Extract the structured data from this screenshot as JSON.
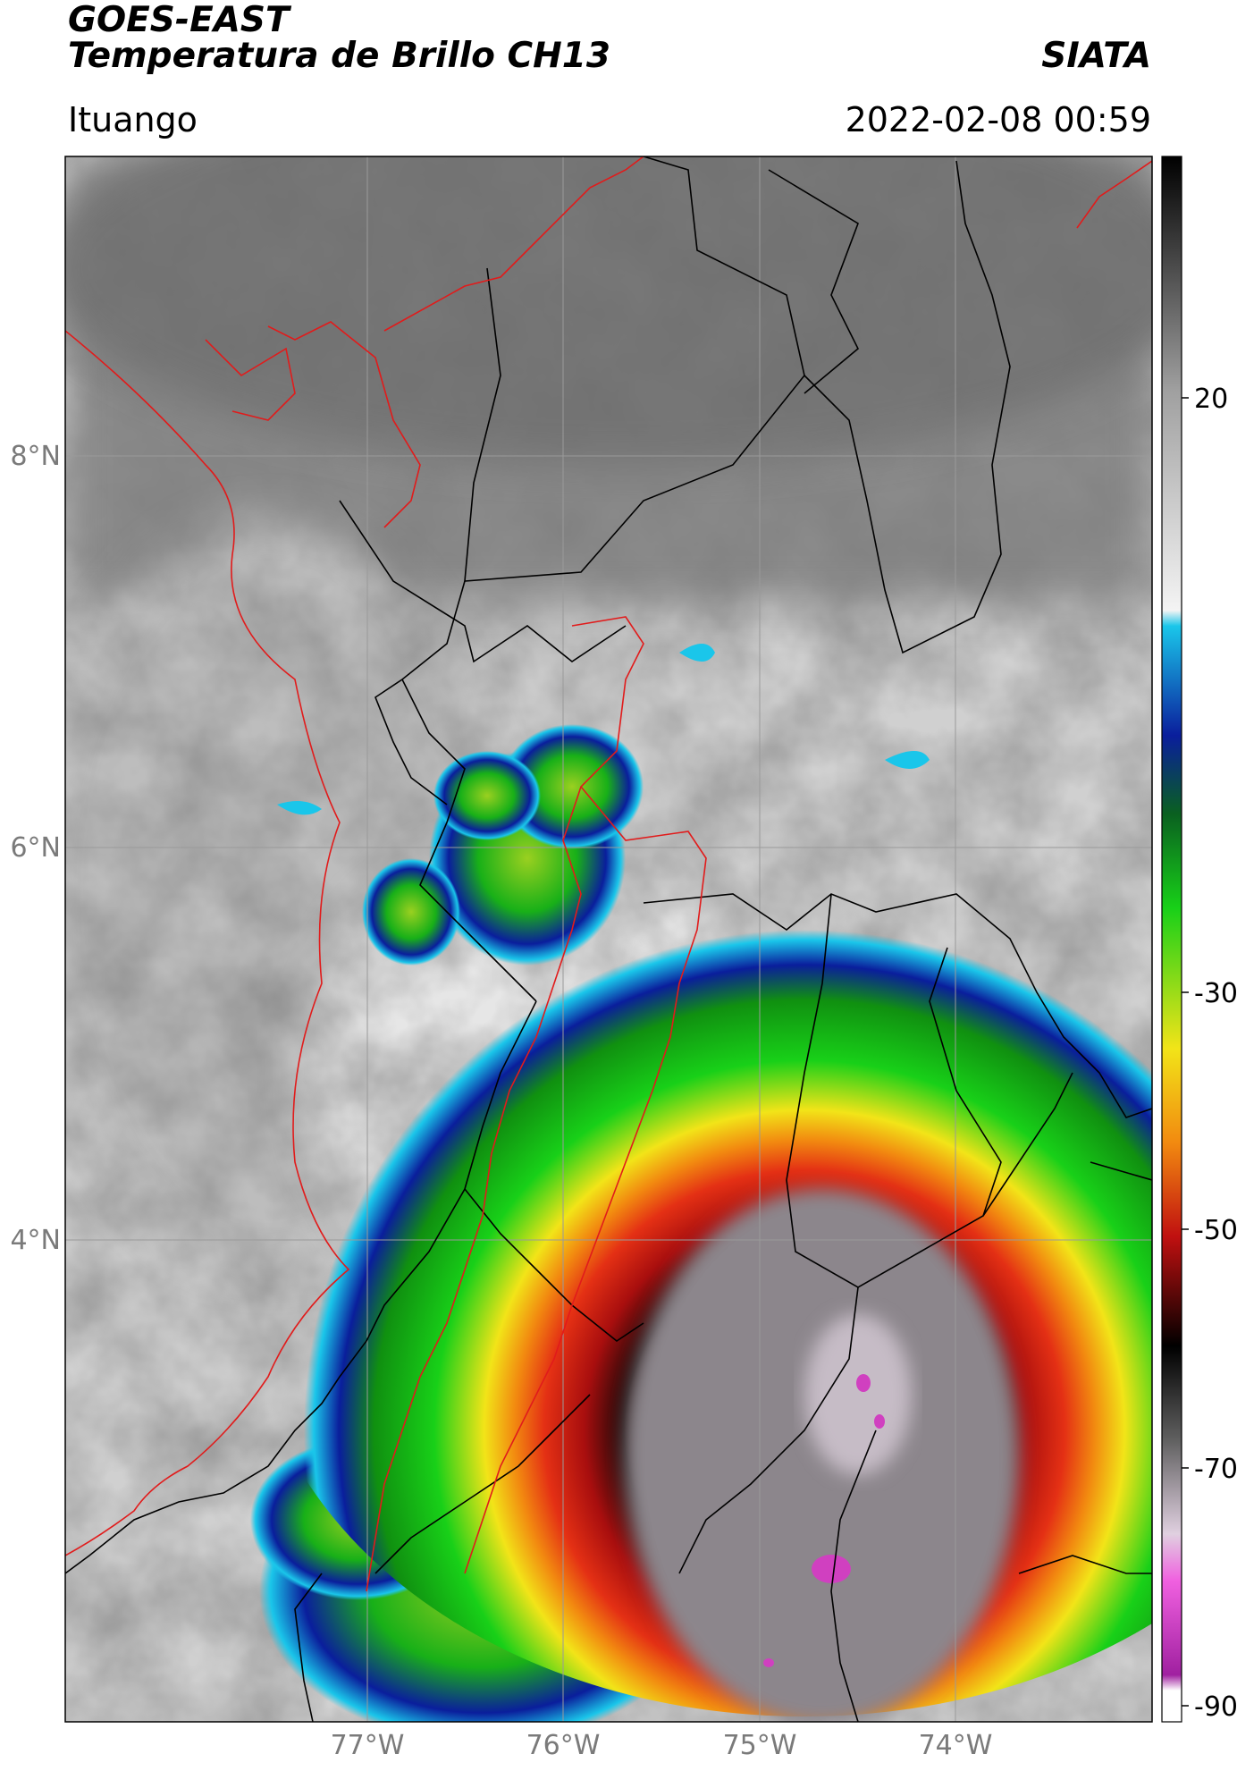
{
  "header": {
    "title_line1": "GOES-EAST",
    "title_line2": "Temperatura de Brillo CH13",
    "brand": "SIATA",
    "location": "Ituango",
    "datetime": "2022-02-08 00:59"
  },
  "map": {
    "lon_labels": [
      "77°W",
      "76°W",
      "75°W",
      "74°W"
    ],
    "lat_labels": [
      "8°N",
      "6°N",
      "4°N"
    ]
  },
  "colorbar": {
    "ticks": [
      "20",
      "-30",
      "-50",
      "-70",
      "-90"
    ],
    "colors": {
      "warm": "#f0f0f0",
      "cyan": "#1ac6ea",
      "blue": "#0a1e9c",
      "green": "#18d018",
      "yellow": "#f2e418",
      "orange": "#f28a10",
      "red": "#d51010",
      "dark": "#140606",
      "magenta": "#d040c0"
    }
  }
}
